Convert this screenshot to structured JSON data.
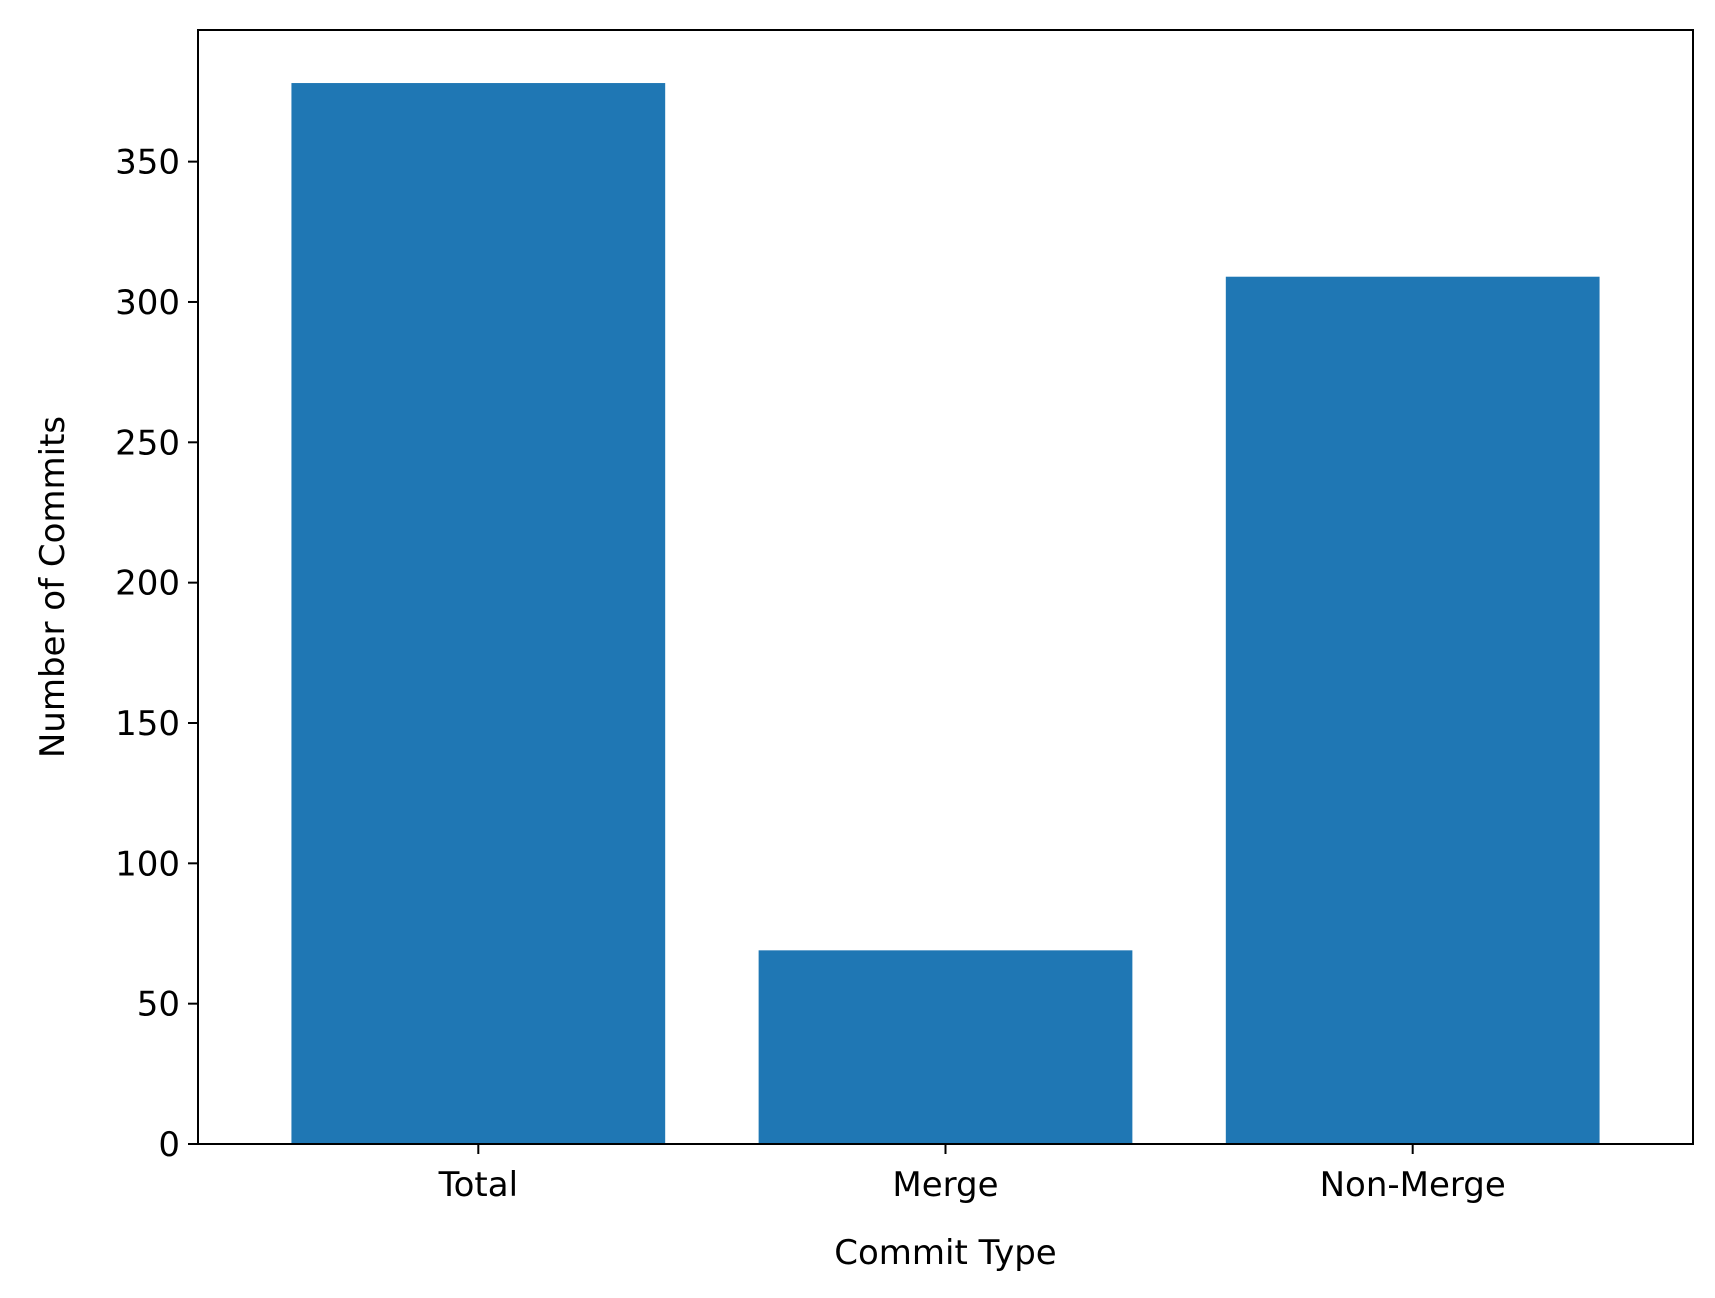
{
  "chart_data": {
    "type": "bar",
    "categories": [
      "Total",
      "Merge",
      "Non-Merge"
    ],
    "values": [
      378,
      69,
      309
    ],
    "title": "",
    "xlabel": "Commit Type",
    "ylabel": "Number of Commits",
    "ylim": [
      0,
      396.9
    ],
    "yticks": [
      0,
      50,
      100,
      150,
      200,
      250,
      300,
      350
    ],
    "grid": false,
    "legend": "none",
    "bar_color": "#1f77b4"
  }
}
